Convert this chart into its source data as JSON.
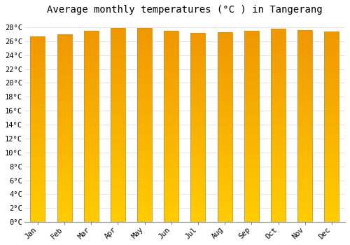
{
  "title": "Average monthly temperatures (°C ) in Tangerang",
  "months": [
    "Jan",
    "Feb",
    "Mar",
    "Apr",
    "May",
    "Jun",
    "Jul",
    "Aug",
    "Sep",
    "Oct",
    "Nov",
    "Dec"
  ],
  "values": [
    26.7,
    27.0,
    27.5,
    27.9,
    27.9,
    27.5,
    27.2,
    27.3,
    27.5,
    27.8,
    27.6,
    27.4
  ],
  "bar_color_light": "#FFCC00",
  "bar_color_dark": "#F5A800",
  "bar_edge_color": "#C8922A",
  "background_color": "#FFFFFF",
  "grid_color": "#D8D8E8",
  "ymin": 0,
  "ymax": 29,
  "title_fontsize": 10,
  "tick_fontsize": 7.5,
  "font_family": "monospace",
  "bar_width": 0.55
}
